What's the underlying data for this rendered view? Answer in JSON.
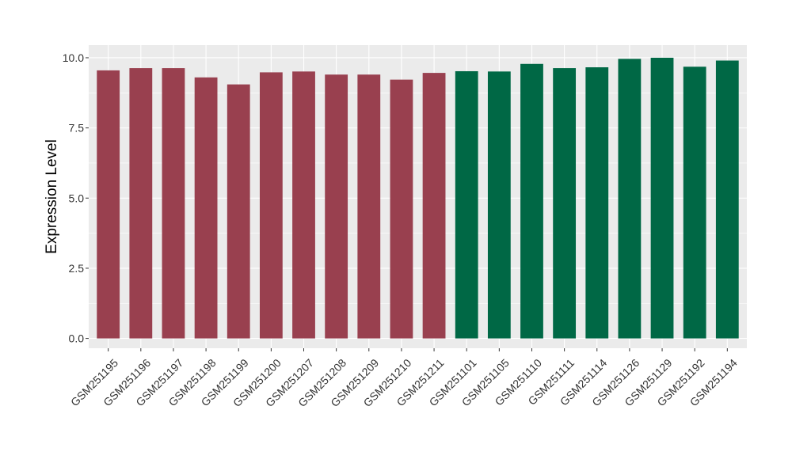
{
  "chart_data": {
    "type": "bar",
    "title": "",
    "xlabel": "",
    "ylabel": "Expression Level",
    "ylim": [
      -0.35,
      10.45
    ],
    "yticks": [
      0.0,
      2.5,
      5.0,
      7.5,
      10.0
    ],
    "ytick_labels": [
      "0.0",
      "2.5",
      "5.0",
      "7.5",
      "10.0"
    ],
    "grid": true,
    "legend": "none",
    "categories": [
      "GSM251195",
      "GSM251196",
      "GSM251197",
      "GSM251198",
      "GSM251199",
      "GSM251200",
      "GSM251207",
      "GSM251208",
      "GSM251209",
      "GSM251210",
      "GSM251211",
      "GSM251101",
      "GSM251105",
      "GSM251110",
      "GSM251111",
      "GSM251114",
      "GSM251126",
      "GSM251129",
      "GSM251192",
      "GSM251194"
    ],
    "values": [
      9.55,
      9.63,
      9.63,
      9.3,
      9.05,
      9.48,
      9.51,
      9.4,
      9.4,
      9.22,
      9.46,
      9.52,
      9.51,
      9.78,
      9.63,
      9.66,
      9.96,
      10.0,
      9.68,
      9.9
    ],
    "bar_colors": [
      "#99404F",
      "#99404F",
      "#99404F",
      "#99404F",
      "#99404F",
      "#99404F",
      "#99404F",
      "#99404F",
      "#99404F",
      "#99404F",
      "#99404F",
      "#006845",
      "#006845",
      "#006845",
      "#006845",
      "#006845",
      "#006845",
      "#006845",
      "#006845",
      "#006845"
    ],
    "colors": {
      "group_a": "#99404F",
      "group_b": "#006845",
      "panel_background": "#EBEBEB",
      "gridline": "#FFFFFF"
    }
  }
}
